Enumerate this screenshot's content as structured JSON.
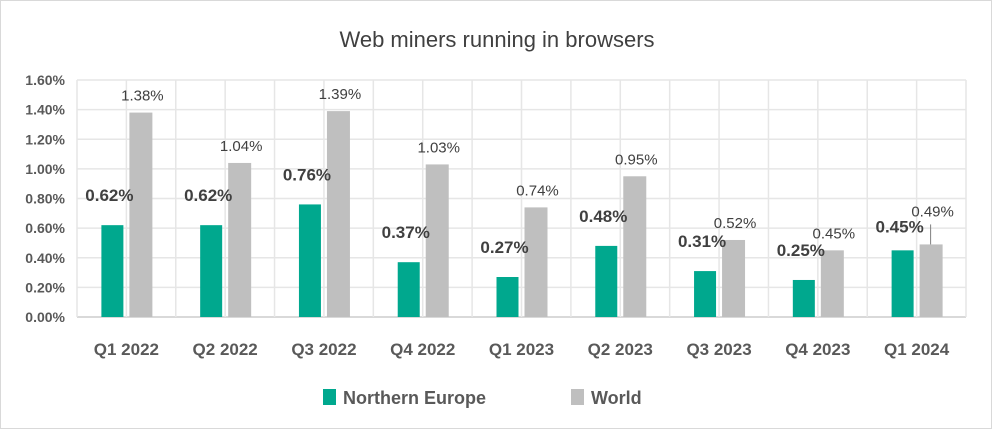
{
  "chart_data": {
    "type": "bar",
    "title": "Web miners running in browsers",
    "xlabel": "",
    "ylabel": "",
    "ylim": [
      0,
      0.016
    ],
    "grid": true,
    "legend_position": "bottom",
    "y_ticks": [
      "0.00%",
      "0.20%",
      "0.40%",
      "0.60%",
      "0.80%",
      "1.00%",
      "1.20%",
      "1.40%",
      "1.60%"
    ],
    "categories": [
      "Q1 2022",
      "Q2 2022",
      "Q3 2022",
      "Q4 2022",
      "Q1 2023",
      "Q2 2023",
      "Q3 2023",
      "Q4 2023",
      "Q1 2024"
    ],
    "series": [
      {
        "name": "Northern Europe",
        "color": "#00a88e",
        "values": [
          0.0062,
          0.0062,
          0.0076,
          0.0037,
          0.0027,
          0.0048,
          0.0031,
          0.0025,
          0.0045
        ],
        "labels": [
          "0.62%",
          "0.62%",
          "0.76%",
          "0.37%",
          "0.27%",
          "0.48%",
          "0.31%",
          "0.25%",
          "0.45%"
        ]
      },
      {
        "name": "World",
        "color": "#bfbfbf",
        "values": [
          0.0138,
          0.0104,
          0.0139,
          0.0103,
          0.0074,
          0.0095,
          0.0052,
          0.0045,
          0.0049
        ],
        "labels": [
          "1.38%",
          "1.04%",
          "1.39%",
          "1.03%",
          "0.74%",
          "0.95%",
          "0.52%",
          "0.45%",
          "0.49%"
        ]
      }
    ]
  }
}
